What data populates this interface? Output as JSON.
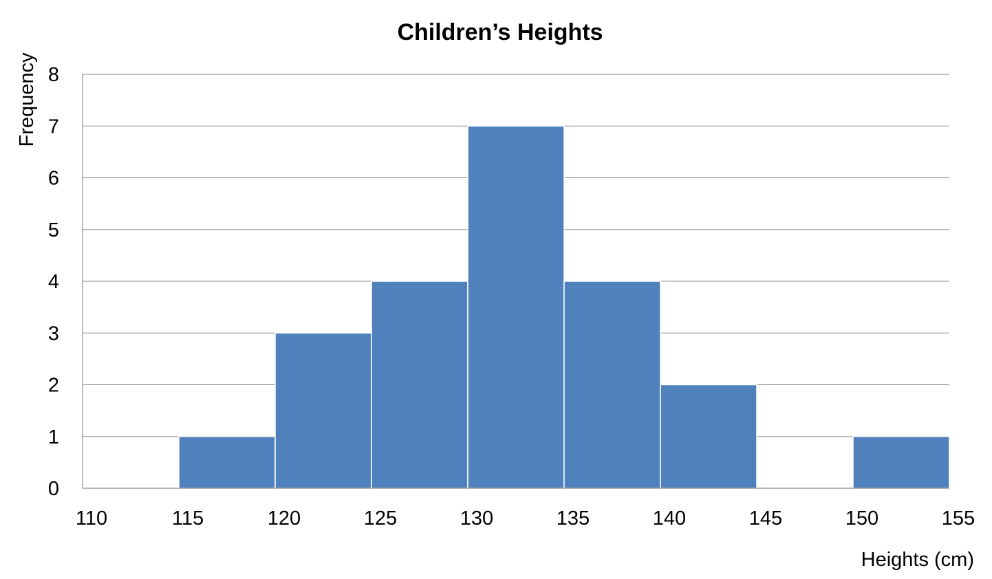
{
  "chart_data": {
    "type": "bar",
    "title": "Children’s Heights",
    "xlabel": "Heights (cm)",
    "ylabel": "Frequency",
    "bin_edges": [
      110,
      115,
      120,
      125,
      130,
      135,
      140,
      145,
      150,
      155
    ],
    "x_tick_labels": [
      "110",
      "115",
      "120",
      "125",
      "130",
      "135",
      "140",
      "145",
      "150",
      "155"
    ],
    "values": [
      0,
      1,
      3,
      4,
      7,
      4,
      2,
      0,
      1
    ],
    "ylim": [
      0,
      8
    ],
    "y_tick_labels": [
      "0",
      "1",
      "2",
      "3",
      "4",
      "5",
      "6",
      "7",
      "8"
    ],
    "grid": true,
    "legend": "none",
    "bar_color": "#4F81BD",
    "gridline_color": "#8C8C8C"
  }
}
